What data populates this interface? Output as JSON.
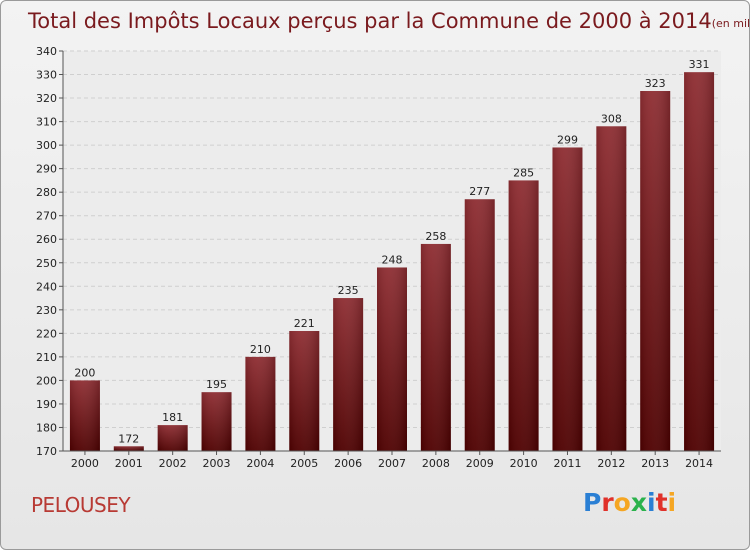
{
  "chart_data": {
    "type": "bar",
    "title": "Total des Impôts Locaux perçus par la Commune de 2000 à 2014",
    "unit_note": "(en milliers d'€)",
    "categories": [
      "2000",
      "2001",
      "2002",
      "2003",
      "2004",
      "2005",
      "2006",
      "2007",
      "2008",
      "2009",
      "2010",
      "2011",
      "2012",
      "2013",
      "2014"
    ],
    "values": [
      200,
      172,
      181,
      195,
      210,
      221,
      235,
      248,
      258,
      277,
      285,
      299,
      308,
      323,
      331
    ],
    "ylim": [
      170,
      340
    ],
    "yticks": [
      170,
      180,
      190,
      200,
      210,
      220,
      230,
      240,
      250,
      260,
      270,
      280,
      290,
      300,
      310,
      320,
      330,
      340
    ],
    "grid": true,
    "bar_color": "#7a1a1e"
  },
  "commune": "PELOUSEY",
  "logo": {
    "text": "Proxiti",
    "letter_colors": [
      "#2a7fd4",
      "#e0312a",
      "#f5a623",
      "#2bb24c",
      "#2a7fd4",
      "#e0312a",
      "#f5a623"
    ]
  }
}
